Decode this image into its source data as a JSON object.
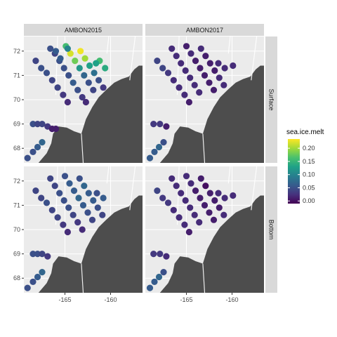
{
  "chart_data": {
    "type": "scatter",
    "facet_columns": [
      "AMBON2015",
      "AMBON2017"
    ],
    "facet_rows": [
      "Surface",
      "Bottom"
    ],
    "x_ticks": [
      -165,
      -160
    ],
    "y_ticks": [
      68,
      69,
      70,
      71,
      72
    ],
    "xlim": [
      -169.5,
      -156.5
    ],
    "ylim": [
      67.4,
      72.6
    ],
    "legend": {
      "title": "sea.ice.melt",
      "ticks": [
        0.0,
        0.05,
        0.1,
        0.15,
        0.2
      ],
      "tick_labels": [
        "0.00",
        "0.05",
        "0.10",
        "0.15",
        "0.20"
      ],
      "range": [
        -0.01,
        0.235
      ],
      "placement": "right"
    },
    "colormap": [
      "#440154",
      "#46337e",
      "#365c8d",
      "#277f8e",
      "#1fa187",
      "#4ac16d",
      "#a0da39",
      "#fde725"
    ],
    "land_color": "#4d4d4d",
    "panels": [
      {
        "col": "AMBON2015",
        "row": "Surface",
        "points": [
          [
            -166.6,
            72.1,
            0.05
          ],
          [
            -166.1,
            71.9,
            0.04
          ],
          [
            -165.6,
            71.6,
            0.05
          ],
          [
            -165.1,
            71.3,
            0.05
          ],
          [
            -164.6,
            71.0,
            0.05
          ],
          [
            -164.1,
            70.7,
            0.06
          ],
          [
            -163.6,
            70.4,
            0.05
          ],
          [
            -163.1,
            70.1,
            0.03
          ],
          [
            -162.7,
            69.9,
            0.02
          ],
          [
            -164.9,
            72.2,
            0.16
          ],
          [
            -164.4,
            71.9,
            0.22
          ],
          [
            -163.9,
            71.6,
            0.18
          ],
          [
            -163.4,
            71.3,
            0.12
          ],
          [
            -162.9,
            71.0,
            0.07
          ],
          [
            -162.4,
            70.7,
            0.05
          ],
          [
            -161.9,
            70.4,
            0.04
          ],
          [
            -163.3,
            72.0,
            0.23
          ],
          [
            -162.8,
            71.7,
            0.2
          ],
          [
            -162.3,
            71.4,
            0.13
          ],
          [
            -161.8,
            71.1,
            0.08
          ],
          [
            -161.3,
            70.8,
            0.05
          ],
          [
            -160.8,
            70.5,
            0.03
          ],
          [
            -161.2,
            71.6,
            0.16
          ],
          [
            -160.6,
            71.3,
            0.14
          ],
          [
            -161.6,
            71.5,
            0.13
          ],
          [
            -168.2,
            71.6,
            0.04
          ],
          [
            -167.6,
            71.3,
            0.05
          ],
          [
            -167.0,
            71.1,
            0.05
          ],
          [
            -166.4,
            70.8,
            0.04
          ],
          [
            -165.8,
            70.5,
            0.04
          ],
          [
            -165.2,
            70.2,
            0.03
          ],
          [
            -164.7,
            69.9,
            0.02
          ],
          [
            -166.0,
            72.0,
            0.06
          ],
          [
            -165.5,
            71.7,
            0.06
          ],
          [
            -164.7,
            72.1,
            0.1
          ],
          [
            -168.5,
            69.0,
            0.05
          ],
          [
            -168.0,
            69.0,
            0.04
          ],
          [
            -167.5,
            69.0,
            0.04
          ],
          [
            -166.9,
            68.9,
            0.03
          ],
          [
            -166.4,
            68.8,
            0.01
          ],
          [
            -166.0,
            68.8,
            0.01
          ],
          [
            -169.1,
            67.6,
            0.05
          ],
          [
            -168.5,
            67.85,
            0.05
          ],
          [
            -168.0,
            68.05,
            0.06
          ],
          [
            -167.5,
            68.25,
            0.07
          ]
        ]
      },
      {
        "col": "AMBON2017",
        "row": "Surface",
        "points": [
          [
            -166.6,
            72.1,
            0.02
          ],
          [
            -166.1,
            71.8,
            0.02
          ],
          [
            -165.6,
            71.5,
            0.02
          ],
          [
            -165.1,
            71.2,
            0.02
          ],
          [
            -164.6,
            70.9,
            0.02
          ],
          [
            -164.1,
            70.6,
            0.02
          ],
          [
            -163.6,
            70.3,
            0.02
          ],
          [
            -165.0,
            72.2,
            0.01
          ],
          [
            -164.5,
            71.9,
            0.02
          ],
          [
            -164.0,
            71.6,
            0.01
          ],
          [
            -163.5,
            71.3,
            0.01
          ],
          [
            -163.0,
            71.0,
            0.01
          ],
          [
            -162.5,
            70.7,
            0.01
          ],
          [
            -162.0,
            70.4,
            0.01
          ],
          [
            -163.4,
            72.1,
            0.02
          ],
          [
            -162.9,
            71.8,
            0.01
          ],
          [
            -162.4,
            71.5,
            0.01
          ],
          [
            -161.9,
            71.2,
            0.01
          ],
          [
            -161.4,
            70.9,
            0.02
          ],
          [
            -160.9,
            70.6,
            0.02
          ],
          [
            -168.2,
            71.6,
            0.04
          ],
          [
            -167.6,
            71.3,
            0.04
          ],
          [
            -167.0,
            71.1,
            0.03
          ],
          [
            -166.4,
            70.8,
            0.02
          ],
          [
            -165.8,
            70.5,
            0.02
          ],
          [
            -165.2,
            70.2,
            0.02
          ],
          [
            -164.7,
            69.9,
            0.01
          ],
          [
            -161.5,
            71.5,
            0.02
          ],
          [
            -160.8,
            71.3,
            0.02
          ],
          [
            -159.9,
            71.4,
            0.02
          ],
          [
            -168.6,
            69.0,
            0.03
          ],
          [
            -167.9,
            69.0,
            0.03
          ],
          [
            -167.2,
            68.9,
            0.01
          ],
          [
            -169.0,
            67.6,
            0.06
          ],
          [
            -168.5,
            67.85,
            0.06
          ],
          [
            -168.0,
            68.05,
            0.07
          ],
          [
            -167.5,
            68.25,
            0.05
          ]
        ]
      },
      {
        "col": "AMBON2015",
        "row": "Bottom",
        "points": [
          [
            -166.6,
            72.1,
            0.04
          ],
          [
            -166.1,
            71.8,
            0.04
          ],
          [
            -165.6,
            71.5,
            0.05
          ],
          [
            -165.1,
            71.2,
            0.05
          ],
          [
            -164.6,
            70.9,
            0.05
          ],
          [
            -164.1,
            70.6,
            0.04
          ],
          [
            -163.6,
            70.3,
            0.03
          ],
          [
            -163.1,
            70.0,
            0.02
          ],
          [
            -165.0,
            72.2,
            0.05
          ],
          [
            -164.5,
            71.9,
            0.06
          ],
          [
            -164.0,
            71.6,
            0.06
          ],
          [
            -163.5,
            71.3,
            0.07
          ],
          [
            -163.0,
            71.0,
            0.06
          ],
          [
            -162.5,
            70.7,
            0.05
          ],
          [
            -162.0,
            70.4,
            0.04
          ],
          [
            -163.4,
            72.1,
            0.05
          ],
          [
            -162.9,
            71.8,
            0.07
          ],
          [
            -162.4,
            71.5,
            0.06
          ],
          [
            -161.9,
            71.2,
            0.06
          ],
          [
            -161.4,
            70.9,
            0.05
          ],
          [
            -160.9,
            70.6,
            0.04
          ],
          [
            -168.2,
            71.6,
            0.04
          ],
          [
            -167.6,
            71.3,
            0.04
          ],
          [
            -167.0,
            71.1,
            0.05
          ],
          [
            -166.4,
            70.8,
            0.04
          ],
          [
            -165.8,
            70.5,
            0.04
          ],
          [
            -165.2,
            70.2,
            0.03
          ],
          [
            -164.7,
            69.9,
            0.02
          ],
          [
            -161.5,
            71.5,
            0.05
          ],
          [
            -160.8,
            71.3,
            0.06
          ],
          [
            -168.5,
            69.0,
            0.05
          ],
          [
            -168.0,
            69.0,
            0.05
          ],
          [
            -167.5,
            69.0,
            0.04
          ],
          [
            -166.9,
            68.9,
            0.03
          ],
          [
            -169.1,
            67.6,
            0.05
          ],
          [
            -168.5,
            67.85,
            0.05
          ],
          [
            -168.0,
            68.05,
            0.06
          ],
          [
            -167.5,
            68.25,
            0.07
          ]
        ]
      },
      {
        "col": "AMBON2017",
        "row": "Bottom",
        "points": [
          [
            -166.6,
            72.1,
            0.02
          ],
          [
            -166.1,
            71.8,
            0.02
          ],
          [
            -165.6,
            71.5,
            0.02
          ],
          [
            -165.1,
            71.2,
            0.02
          ],
          [
            -164.6,
            70.9,
            0.02
          ],
          [
            -164.1,
            70.6,
            0.02
          ],
          [
            -163.6,
            70.3,
            0.02
          ],
          [
            -165.0,
            72.2,
            0.02
          ],
          [
            -164.5,
            71.9,
            0.02
          ],
          [
            -164.0,
            71.6,
            0.01
          ],
          [
            -163.5,
            71.3,
            0.01
          ],
          [
            -163.0,
            71.0,
            0.01
          ],
          [
            -162.5,
            70.7,
            0.01
          ],
          [
            -162.0,
            70.4,
            0.01
          ],
          [
            -163.4,
            72.1,
            0.01
          ],
          [
            -162.9,
            71.8,
            0.0
          ],
          [
            -162.4,
            71.5,
            0.01
          ],
          [
            -161.9,
            71.2,
            0.01
          ],
          [
            -161.4,
            70.9,
            0.01
          ],
          [
            -160.9,
            70.6,
            0.02
          ],
          [
            -168.2,
            71.6,
            0.04
          ],
          [
            -167.6,
            71.3,
            0.03
          ],
          [
            -167.0,
            71.1,
            0.03
          ],
          [
            -166.4,
            70.8,
            0.02
          ],
          [
            -165.8,
            70.5,
            0.02
          ],
          [
            -165.2,
            70.2,
            0.02
          ],
          [
            -164.7,
            69.9,
            0.01
          ],
          [
            -161.5,
            71.5,
            0.02
          ],
          [
            -160.8,
            71.3,
            0.02
          ],
          [
            -159.9,
            71.4,
            0.02
          ],
          [
            -168.6,
            69.0,
            0.03
          ],
          [
            -167.9,
            69.0,
            0.03
          ],
          [
            -167.2,
            68.9,
            0.02
          ],
          [
            -169.0,
            67.6,
            0.06
          ],
          [
            -168.5,
            67.85,
            0.06
          ],
          [
            -168.0,
            68.05,
            0.07
          ],
          [
            -167.5,
            68.25,
            0.05
          ]
        ]
      }
    ],
    "land_polygon": [
      [
        -165.7,
        68.9
      ],
      [
        -164.8,
        68.85
      ],
      [
        -164.0,
        68.7
      ],
      [
        -163.2,
        68.6
      ],
      [
        -162.7,
        69.2
      ],
      [
        -162.0,
        69.7
      ],
      [
        -161.3,
        70.1
      ],
      [
        -160.5,
        70.4
      ],
      [
        -159.6,
        70.7
      ],
      [
        -158.8,
        70.85
      ],
      [
        -158.0,
        70.95
      ],
      [
        -157.4,
        71.25
      ],
      [
        -156.9,
        71.4
      ],
      [
        -156.5,
        71.4
      ],
      [
        -156.5,
        67.4
      ],
      [
        -167.9,
        67.4
      ],
      [
        -167.0,
        67.8
      ],
      [
        -166.5,
        68.2
      ],
      [
        -166.3,
        68.6
      ]
    ],
    "coast_lines": [
      [
        [
          -157.3,
          72.6
        ],
        [
          -157.9,
          70.8
        ]
      ],
      [
        [
          -165.8,
          72.6
        ],
        [
          -166.0,
          70.2
        ]
      ],
      [
        [
          -160.2,
          72.6
        ],
        [
          -160.4,
          71.9
        ]
      ],
      [
        [
          -163.2,
          68.6
        ],
        [
          -163.0,
          67.4
        ]
      ]
    ]
  }
}
